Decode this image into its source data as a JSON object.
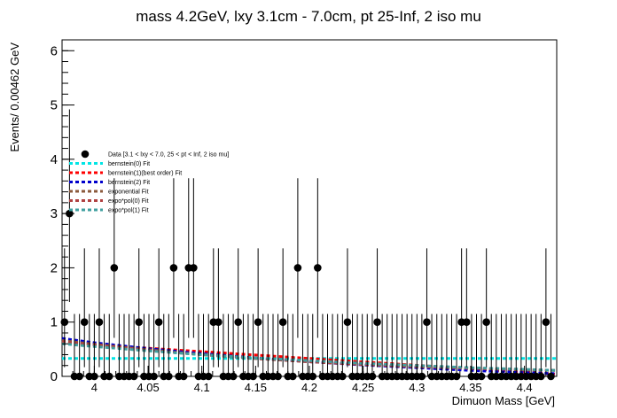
{
  "chart_data": {
    "type": "scatter",
    "title": "mass 4.2GeV, lxy 3.1cm - 7.0cm, pt 25-Inf, 2 iso mu",
    "xlabel": "Dimuon Mass [GeV]",
    "ylabel": "Events/ 0.00462 GeV",
    "xlim": [
      3.97,
      4.43
    ],
    "ylim": [
      0,
      6.2
    ],
    "x_ticks": [
      4,
      4.05,
      4.1,
      4.15,
      4.2,
      4.25,
      4.3,
      4.35,
      4.4
    ],
    "x_tick_labels": [
      "4",
      "4.05",
      "4.1",
      "4.15",
      "4.2",
      "4.25",
      "4.3",
      "4.35",
      "4.4"
    ],
    "y_ticks": [
      0,
      1,
      2,
      3,
      4,
      5,
      6
    ],
    "y_tick_labels": [
      "0",
      "1",
      "2",
      "3",
      "4",
      "5",
      "6"
    ],
    "grid": false,
    "legend_position": "upper-left",
    "data_series_name": "Data [3.1 < lxy < 7.0, 25 < pt < Inf, 2 iso mu]",
    "data_points": {
      "x": [
        3.9723,
        3.9769,
        3.9815,
        3.9862,
        3.9908,
        3.9954,
        4.0,
        4.0046,
        4.0092,
        4.0139,
        4.0185,
        4.0231,
        4.0277,
        4.0323,
        4.0369,
        4.0415,
        4.0462,
        4.0508,
        4.0554,
        4.06,
        4.0646,
        4.0692,
        4.0738,
        4.0785,
        4.0831,
        4.0877,
        4.0923,
        4.0969,
        4.1015,
        4.1062,
        4.1108,
        4.1154,
        4.12,
        4.1246,
        4.1292,
        4.1338,
        4.1385,
        4.1431,
        4.1477,
        4.1523,
        4.1569,
        4.1615,
        4.1662,
        4.1708,
        4.1754,
        4.18,
        4.1846,
        4.1892,
        4.1938,
        4.1985,
        4.2031,
        4.2077,
        4.2123,
        4.2169,
        4.2215,
        4.2262,
        4.2308,
        4.2354,
        4.24,
        4.2446,
        4.2492,
        4.2538,
        4.2585,
        4.2631,
        4.2677,
        4.2723,
        4.2769,
        4.2815,
        4.2862,
        4.2908,
        4.2954,
        4.3,
        4.3046,
        4.3092,
        4.3138,
        4.3185,
        4.3231,
        4.3277,
        4.3323,
        4.3369,
        4.3415,
        4.3462,
        4.3508,
        4.3554,
        4.36,
        4.3646,
        4.3692,
        4.3738,
        4.3785,
        4.3831,
        4.3877,
        4.3923,
        4.3969,
        4.4015,
        4.4062,
        4.4108,
        4.4154,
        4.42,
        4.4246
      ],
      "y": [
        1,
        3,
        0,
        0,
        1,
        0,
        0,
        1,
        0,
        0,
        2,
        0,
        0,
        0,
        0,
        1,
        0,
        0,
        0,
        1,
        0,
        0,
        2,
        0,
        0,
        2,
        2,
        0,
        0,
        0,
        1,
        1,
        0,
        0,
        0,
        1,
        0,
        0,
        0,
        1,
        0,
        0,
        0,
        0,
        1,
        0,
        0,
        2,
        0,
        0,
        0,
        2,
        0,
        0,
        0,
        0,
        0,
        1,
        0,
        0,
        0,
        0,
        0,
        1,
        0,
        0,
        0,
        0,
        0,
        0,
        0,
        0,
        0,
        1,
        0,
        0,
        0,
        0,
        0,
        0,
        1,
        1,
        0,
        0,
        0,
        1,
        0,
        0,
        0,
        0,
        0,
        0,
        0,
        0,
        0,
        0,
        0,
        1,
        0
      ]
    },
    "fits": [
      {
        "name": "bernstein(0) Fit",
        "color": "#00e5e5",
        "dash": "4,3",
        "x": [
          3.97,
          4.43
        ],
        "y": [
          0.33,
          0.33
        ]
      },
      {
        "name": "bernstein(1)(best order) Fit",
        "color": "#ff0000",
        "dash": "4,3",
        "x": [
          3.97,
          4.43
        ],
        "y": [
          0.62,
          0.04
        ]
      },
      {
        "name": "bernstein(2) Fit",
        "color": "#0000cc",
        "dash": "4,3",
        "x": [
          3.97,
          4.0,
          4.05,
          4.1,
          4.15,
          4.2,
          4.25,
          4.3,
          4.35,
          4.4,
          4.43
        ],
        "y": [
          0.7,
          0.62,
          0.51,
          0.42,
          0.34,
          0.27,
          0.21,
          0.16,
          0.11,
          0.07,
          0.05
        ]
      },
      {
        "name": "exponential Fit",
        "color": "#8b5a3c",
        "dash": "4,3",
        "x": [
          3.97,
          4.0,
          4.05,
          4.1,
          4.15,
          4.2,
          4.25,
          4.3,
          4.35,
          4.4,
          4.43
        ],
        "y": [
          0.66,
          0.59,
          0.49,
          0.4,
          0.33,
          0.27,
          0.22,
          0.18,
          0.15,
          0.12,
          0.11
        ]
      },
      {
        "name": "expo*pol(0) Fit",
        "color": "#b04040",
        "dash": "4,3",
        "x": [
          3.97,
          4.0,
          4.05,
          4.1,
          4.15,
          4.2,
          4.25,
          4.3,
          4.35,
          4.4,
          4.43
        ],
        "y": [
          0.64,
          0.58,
          0.48,
          0.4,
          0.33,
          0.27,
          0.22,
          0.18,
          0.15,
          0.12,
          0.11
        ]
      },
      {
        "name": "expo*pol(1) Fit",
        "color": "#40a0a0",
        "dash": "4,3",
        "x": [
          3.97,
          4.0,
          4.05,
          4.1,
          4.15,
          4.2,
          4.25,
          4.3,
          4.35,
          4.4,
          4.43
        ],
        "y": [
          0.6,
          0.55,
          0.47,
          0.4,
          0.34,
          0.29,
          0.24,
          0.2,
          0.16,
          0.13,
          0.11
        ]
      }
    ],
    "error_bars": {
      "upper_for_0": 1.15,
      "upper_for_1": 1.36,
      "lower_for_1": 0.83,
      "upper_for_2": 1.65,
      "lower_for_2": 1.29,
      "upper_for_3": 1.92,
      "lower_for_3": 1.63
    }
  }
}
